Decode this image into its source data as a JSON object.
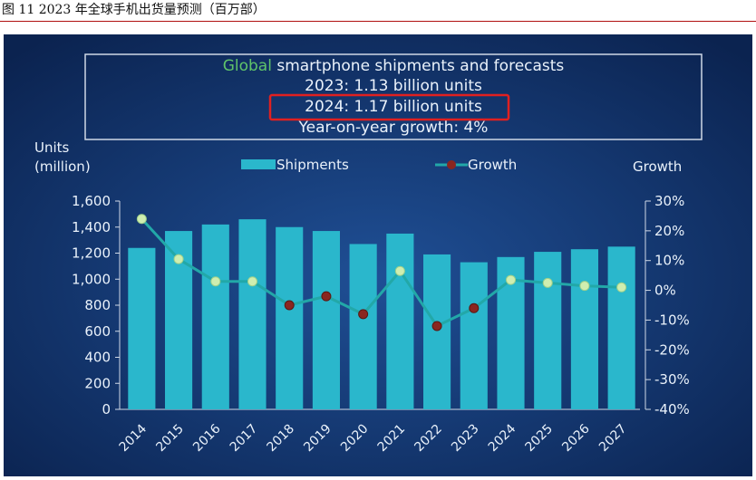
{
  "caption": "图 11 2023 年全球手机出货量预测（百万部）",
  "colors": {
    "bg_center": "#1f4f95",
    "bg_edge": "#0b2350",
    "bar": "#2ab7cc",
    "line": "#22a8a8",
    "growth_green_marker": "#cfeeb0",
    "growth_red_marker": "#8a2620",
    "title_accent": "#5fc46a",
    "highlight_box": "#e02020",
    "text": "#eaf2fb"
  },
  "chart_data": {
    "type": "bar",
    "title_lines": [
      {
        "accent": "Global",
        "text": " smartphone shipments and forecasts"
      },
      {
        "accent": "",
        "text": "2023: 1.13 billion units"
      },
      {
        "accent": "",
        "text": "2024: 1.17 billion units"
      },
      {
        "accent": "",
        "text": "Year-on-year growth: 4%"
      }
    ],
    "highlighted_title_line": 2,
    "ylabel_left": [
      "Units",
      "(million)"
    ],
    "ylabel_right": "Growth",
    "categories": [
      "2014",
      "2015",
      "2016",
      "2017",
      "2018",
      "2019",
      "2020",
      "2021",
      "2022",
      "2023",
      "2024",
      "2025",
      "2026",
      "2027"
    ],
    "series": [
      {
        "name": "Shipments",
        "kind": "bar",
        "axis": "left",
        "values": [
          1240,
          1370,
          1420,
          1460,
          1400,
          1370,
          1270,
          1350,
          1190,
          1130,
          1170,
          1210,
          1230,
          1250
        ]
      },
      {
        "name": "Growth",
        "kind": "line",
        "axis": "right",
        "unit": "%",
        "values": [
          24,
          10.5,
          3,
          3,
          -5,
          -2,
          -8,
          6.5,
          -12,
          -6,
          3.5,
          2.5,
          1.5,
          1
        ],
        "negative_marker": [
          "green",
          "green",
          "green",
          "green",
          "red",
          "red",
          "red",
          "green",
          "red",
          "red",
          "green",
          "green",
          "green",
          "green"
        ]
      }
    ],
    "ylim_left": [
      0,
      1600
    ],
    "yticks_left": [
      "0",
      "200",
      "400",
      "600",
      "800",
      "1,000",
      "1,200",
      "1,400",
      "1,600"
    ],
    "ylim_right": [
      -40,
      30
    ],
    "yticks_right": [
      "-40%",
      "-30%",
      "-20%",
      "-10%",
      "0%",
      "10%",
      "20%",
      "30%"
    ],
    "legend_position": "top-center",
    "grid": false
  }
}
